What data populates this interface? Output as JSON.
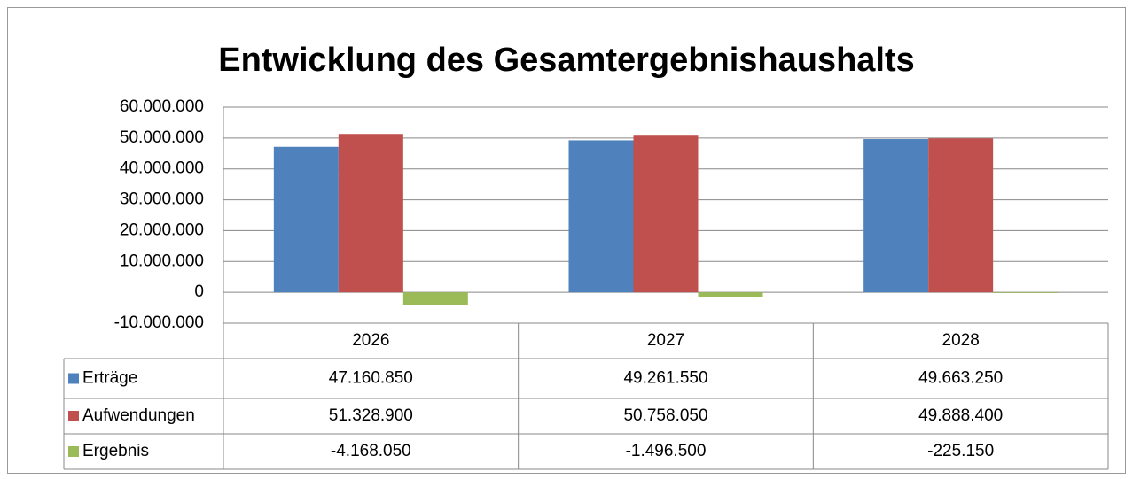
{
  "chart_data": {
    "type": "bar",
    "title": "Entwicklung des Gesamtergebnishaushalts",
    "categories": [
      "2026",
      "2027",
      "2028"
    ],
    "series": [
      {
        "name": "Erträge",
        "color": "#4f81bd",
        "values": [
          47160850,
          49261550,
          49663250
        ],
        "value_labels": [
          "47.160.850",
          "49.261.550",
          "49.663.250"
        ]
      },
      {
        "name": "Aufwendungen",
        "color": "#c0504d",
        "values": [
          51328900,
          50758050,
          49888400
        ],
        "value_labels": [
          "51.328.900",
          "50.758.050",
          "49.888.400"
        ]
      },
      {
        "name": "Ergebnis",
        "color": "#9bbb59",
        "values": [
          -4168050,
          -1496500,
          -225150
        ],
        "value_labels": [
          "-4.168.050",
          "-1.496.500",
          "-225.150"
        ]
      }
    ],
    "ylim": [
      -10000000,
      60000000
    ],
    "yticks": [
      {
        "value": -10000000,
        "label": "-10.000.000"
      },
      0,
      {
        "value": 10000000,
        "label": "10.000.000"
      },
      {
        "value": 20000000,
        "label": "20.000.000"
      },
      {
        "value": 30000000,
        "label": "30.000.000"
      },
      {
        "value": 40000000,
        "label": "40.000.000"
      },
      {
        "value": 50000000,
        "label": "50.000.000"
      },
      {
        "value": 60000000,
        "label": "60.000.000"
      }
    ],
    "grid": true
  }
}
